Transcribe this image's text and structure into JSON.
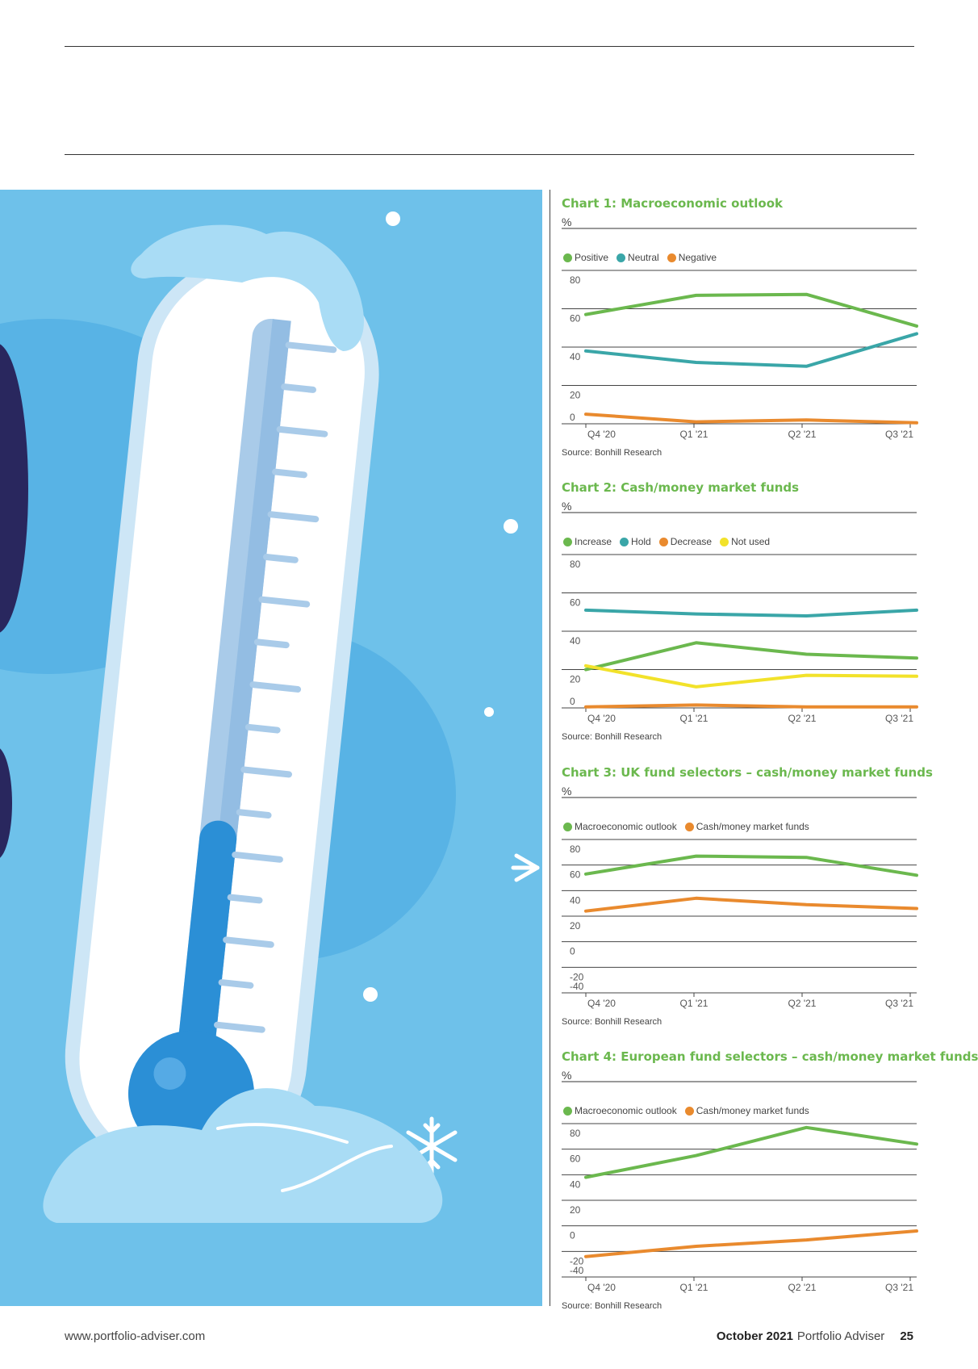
{
  "footer": {
    "url": "www.portfolio-adviser.com",
    "date": "October 2021",
    "magazine": "Portfolio Adviser",
    "page": "25"
  },
  "illustration": {
    "subject": "thermometer-with-snow",
    "colors": {
      "sky": "#6ec1ea",
      "mercury": "#2b8fd6",
      "snow": "#a9dcf5"
    }
  },
  "colors": {
    "green": "#6bb84e",
    "teal": "#3aa6a8",
    "orange": "#e98a2e",
    "yellow": "#f2e22a"
  },
  "chart_data": [
    {
      "type": "line",
      "title": "Chart 1: Macroeconomic outlook",
      "unit": "%",
      "source": "Source: Bonhill Research",
      "categories": [
        "Q4 '20",
        "Q1 '21",
        "Q2 '21",
        "Q3 '21"
      ],
      "yticks": [
        "80",
        "60",
        "40",
        "20",
        "0"
      ],
      "ylim": [
        0,
        80
      ],
      "series": [
        {
          "name": "Positive",
          "color": "#6bb84e",
          "values": [
            57,
            67,
            67.5,
            51
          ]
        },
        {
          "name": "Neutral",
          "color": "#3aa6a8",
          "values": [
            38,
            32,
            30,
            47
          ]
        },
        {
          "name": "Negative",
          "color": "#e98a2e",
          "values": [
            5,
            1,
            2,
            0.5
          ]
        }
      ]
    },
    {
      "type": "line",
      "title": "Chart 2: Cash/money market funds",
      "unit": "%",
      "source": "Source: Bonhill Research",
      "categories": [
        "Q4 '20",
        "Q1 '21",
        "Q2 '21",
        "Q3 '21"
      ],
      "yticks": [
        "80",
        "60",
        "40",
        "20",
        "0"
      ],
      "ylim": [
        0,
        80
      ],
      "series": [
        {
          "name": "Increase",
          "color": "#6bb84e",
          "values": [
            20,
            34,
            28,
            26
          ]
        },
        {
          "name": "Hold",
          "color": "#3aa6a8",
          "values": [
            51,
            49,
            48,
            51
          ]
        },
        {
          "name": "Decrease",
          "color": "#e98a2e",
          "values": [
            0.5,
            1.5,
            0.5,
            0.5
          ]
        },
        {
          "name": "Not used",
          "color": "#f2e22a",
          "values": [
            22,
            11,
            17,
            16.5
          ]
        }
      ]
    },
    {
      "type": "line",
      "title": "Chart 3: UK fund selectors – cash/money market funds",
      "unit": "%",
      "source": "Source: Bonhill Research",
      "categories": [
        "Q4 '20",
        "Q1 '21",
        "Q2 '21",
        "Q3 '21"
      ],
      "yticks": [
        "80",
        "60",
        "40",
        "20",
        "0",
        "-20",
        "-40"
      ],
      "ylim": [
        -40,
        80
      ],
      "series": [
        {
          "name": "Macroeconomic outlook",
          "color": "#6bb84e",
          "values": [
            53,
            67,
            66,
            52
          ]
        },
        {
          "name": "Cash/money market funds",
          "color": "#e98a2e",
          "values": [
            24,
            34,
            29,
            26
          ]
        }
      ]
    },
    {
      "type": "line",
      "title": "Chart 4: European  fund selectors – cash/money market funds",
      "unit": "%",
      "source": "Source: Bonhill Research",
      "categories": [
        "Q4 '20",
        "Q1 '21",
        "Q2 '21",
        "Q3 '21"
      ],
      "yticks": [
        "80",
        "60",
        "40",
        "20",
        "0",
        "-20",
        "-40"
      ],
      "ylim": [
        -40,
        80
      ],
      "series": [
        {
          "name": "Macroeconomic outlook",
          "color": "#6bb84e",
          "values": [
            38,
            55,
            77,
            64
          ]
        },
        {
          "name": "Cash/money market funds",
          "color": "#e98a2e",
          "values": [
            -24,
            -16,
            -11,
            -4
          ]
        }
      ]
    }
  ]
}
